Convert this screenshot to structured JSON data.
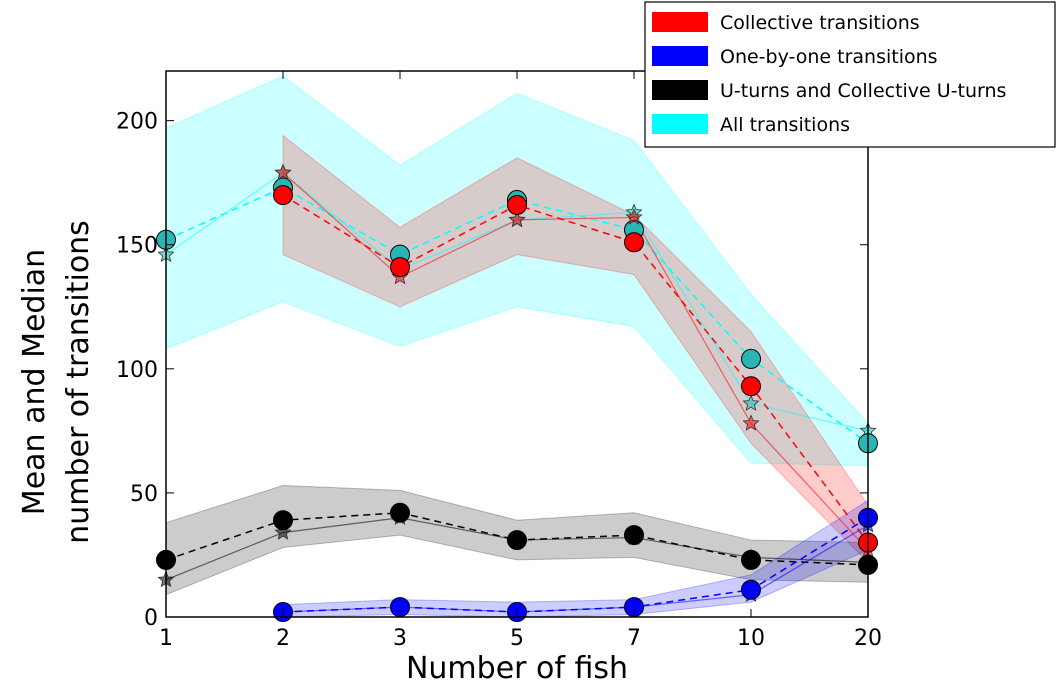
{
  "chart_data": {
    "type": "line",
    "xlabel": "Number of fish",
    "ylabel_lines": [
      "Mean and Median",
      "number of transitions"
    ],
    "categories": [
      "1",
      "2",
      "3",
      "5",
      "7",
      "10",
      "20"
    ],
    "ylim": [
      0,
      220
    ],
    "yticks": [
      0,
      50,
      100,
      150,
      200
    ],
    "grid": false,
    "legend_position": "top-right",
    "legend": [
      {
        "label": "Collective transitions",
        "color": "#ff0000"
      },
      {
        "label": "One-by-one transitions",
        "color": "#0000ff"
      },
      {
        "label": "U-turns and Collective U-turns",
        "color": "#000000"
      },
      {
        "label": "All transitions",
        "color": "#00ffff"
      }
    ],
    "series": [
      {
        "key": "all",
        "color": "#00ffff",
        "marker_color": "#2ab5b5",
        "band_color": "#00ffff",
        "band_opacity": 0.2,
        "mean": [
          152,
          173,
          146,
          168,
          156,
          104,
          70
        ],
        "median": [
          146,
          179,
          140,
          160,
          163,
          86,
          75
        ],
        "band_low": [
          108,
          127,
          109,
          125,
          117,
          62,
          61
        ],
        "band_high": [
          197,
          218,
          182,
          211,
          192,
          130,
          78
        ]
      },
      {
        "key": "collective",
        "color": "#ff0000",
        "marker_color": "#ff0000",
        "band_color": "#ff0000",
        "band_opacity": 0.2,
        "mean": [
          null,
          170,
          141,
          166,
          151,
          93,
          30
        ],
        "median": [
          null,
          179,
          137,
          160,
          161,
          78,
          27
        ],
        "band_low": [
          null,
          146,
          125,
          146,
          138,
          70,
          22
        ],
        "band_high": [
          null,
          194,
          157,
          185,
          162,
          115,
          45
        ]
      },
      {
        "key": "uturns",
        "color": "#000000",
        "marker_color": "#000000",
        "band_color": "#000000",
        "band_opacity": 0.2,
        "mean": [
          23,
          39,
          42,
          31,
          33,
          23,
          21
        ],
        "median": [
          15,
          34,
          40,
          31,
          32,
          24,
          22
        ],
        "band_low": [
          9,
          28,
          33,
          23,
          24,
          15,
          14
        ],
        "band_high": [
          38,
          53,
          51,
          39,
          42,
          31,
          30
        ]
      },
      {
        "key": "onebyone",
        "color": "#0000ff",
        "marker_color": "#0000ff",
        "band_color": "#0000ff",
        "band_opacity": 0.2,
        "mean": [
          null,
          2,
          4,
          2,
          4,
          11,
          40
        ],
        "median": [
          null,
          2,
          4,
          2,
          4,
          9,
          37
        ],
        "band_low": [
          null,
          0,
          1,
          0,
          1,
          6,
          27
        ],
        "band_high": [
          null,
          5,
          7,
          6,
          7,
          17,
          47
        ]
      }
    ]
  }
}
